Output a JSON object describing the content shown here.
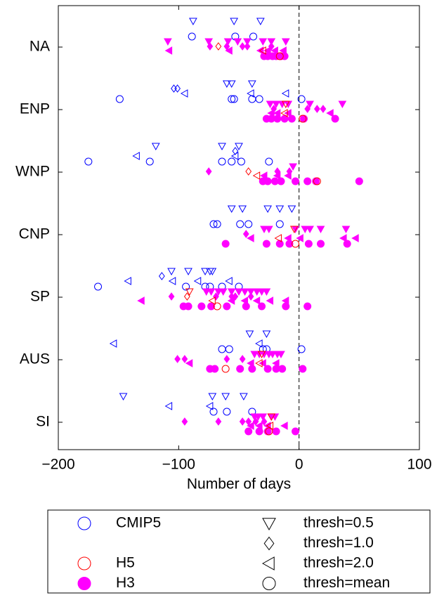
{
  "chart_data": {
    "type": "scatter",
    "xlabel": "Number of days",
    "xlim": [
      -200,
      100
    ],
    "xticks": [
      -200,
      -100,
      0,
      100
    ],
    "vline": 0,
    "categories": [
      "NA",
      "ENP",
      "WNP",
      "CNP",
      "SP",
      "AUS",
      "SI"
    ],
    "markers": [
      {
        "name": "thresh=0.5",
        "shape": "triangle-down"
      },
      {
        "name": "thresh=1.0",
        "shape": "diamond"
      },
      {
        "name": "thresh=2.0",
        "shape": "triangle-left"
      },
      {
        "name": "thresh=mean",
        "shape": "circle"
      }
    ],
    "series": [
      {
        "name": "CMIP5",
        "color": "#0000ff",
        "filled": false,
        "values": [
          [
            [
              -88,
              -54,
              -32
            ],
            [
              -60,
              -56,
              -39
            ],
            [
              -119,
              -64,
              -50
            ],
            [
              -56,
              -47,
              -26,
              -16,
              -6
            ],
            [
              -106,
              -92,
              -78,
              -74,
              -72
            ],
            [
              -41,
              -27
            ],
            [
              -146,
              -72,
              -61,
              -46
            ]
          ],
          [
            [],
            [
              -104,
              -101
            ],
            [
              -53
            ],
            [],
            [
              -114
            ],
            [],
            []
          ],
          [
            [],
            [
              -95,
              -40,
              -11
            ],
            [
              -135,
              -53
            ],
            [],
            [
              -142,
              -105,
              -84,
              -58
            ],
            [
              -154,
              -33
            ],
            [
              -108,
              -74
            ]
          ],
          [
            [
              -89,
              -53,
              -38
            ],
            [
              -149,
              -56,
              -54,
              -39,
              -33,
              2
            ],
            [
              -175,
              -124,
              -64,
              -56,
              -48,
              -25
            ],
            [
              -71,
              -68,
              -49,
              -42,
              -16
            ],
            [
              -167,
              -94,
              -78,
              -74,
              -64,
              -50
            ],
            [
              -64,
              -58,
              -30,
              -27,
              2
            ],
            [
              -71,
              -60,
              -39
            ]
          ]
        ]
      },
      {
        "name": "H5",
        "color": "#ff0000",
        "filled": false,
        "values": [
          [
            [],
            [
              -11
            ],
            [],
            [
              -4
            ],
            [
              -91
            ],
            [
              -31
            ],
            [
              -23
            ]
          ],
          [
            [
              -67
            ],
            [],
            [
              -42
            ],
            [],
            [
              -93
            ],
            [],
            []
          ],
          [
            [
              -30
            ],
            [
              -12
            ],
            [
              -35
            ],
            [
              -17
            ],
            [
              -72
            ],
            [
              -33
            ],
            [
              -24
            ]
          ],
          [
            [
              -16
            ],
            [
              3
            ],
            [
              15
            ],
            [
              -3
            ],
            [
              -68
            ],
            [
              -61
            ],
            [
              -25
            ]
          ]
        ]
      },
      {
        "name": "H3",
        "color": "#ff00ff",
        "filled": true,
        "values": [
          [
            [
              -109,
              -75,
              -59,
              -51,
              -43,
              -30,
              -23,
              -11
            ],
            [
              -24,
              -19,
              -14,
              -9,
              9,
              36
            ],
            [
              -5
            ],
            [
              -29,
              -25,
              -3,
              5,
              9,
              18,
              39
            ],
            [
              -77,
              -73,
              -67,
              -63,
              -56,
              -50,
              -45,
              -40,
              -35,
              -31,
              -27
            ],
            [
              -37,
              -33,
              -29,
              -25,
              -22,
              -18,
              -15
            ],
            [
              -37,
              -34,
              -30,
              -23,
              -20
            ]
          ],
          [
            [
              -74,
              -60,
              -47,
              -43,
              -23
            ],
            [
              -21,
              7,
              15,
              20
            ],
            [
              -75,
              -18,
              -8
            ],
            [
              -44
            ],
            [
              -106,
              -69,
              -56,
              -53,
              -40
            ],
            [
              -101,
              -95,
              -60,
              -47
            ],
            [
              -95,
              -67,
              -47,
              -42,
              -36,
              -29
            ]
          ],
          [
            [
              -108,
              -58,
              -32,
              -26,
              -20,
              -13
            ],
            [
              -23,
              -18,
              -9,
              26
            ],
            [
              -29,
              -18,
              -9
            ],
            [
              -40,
              -9,
              1,
              37,
              47
            ],
            [
              -131,
              -56,
              -45,
              -35,
              -24,
              -11
            ],
            [
              -91,
              -40,
              -30,
              -19
            ],
            [
              -40,
              -33,
              -26,
              -12
            ]
          ],
          [
            [
              -29,
              -26,
              -22,
              -19,
              -15,
              -12
            ],
            [
              -27,
              -23,
              -18,
              -12,
              -6,
              4,
              30
            ],
            [
              -30,
              -26,
              -20,
              -15,
              -3,
              7,
              14,
              50
            ],
            [
              -61,
              -27,
              -16,
              -8,
              8,
              18,
              40
            ],
            [
              -96,
              -92,
              -81,
              -73,
              -60,
              -44,
              -31,
              -11,
              7
            ],
            [
              -74,
              -70,
              -49,
              -39,
              -26,
              -19,
              -14,
              3
            ],
            [
              -42,
              -33,
              -26,
              -19,
              -3
            ]
          ]
        ]
      }
    ]
  }
}
